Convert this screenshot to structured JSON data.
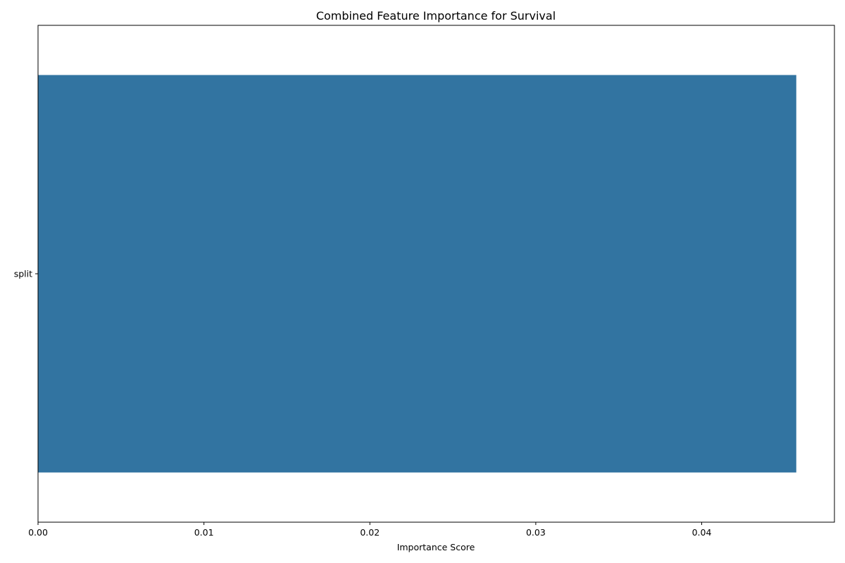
{
  "chart_data": {
    "type": "bar",
    "orientation": "horizontal",
    "title": "Combined Feature Importance for Survival",
    "xlabel": "Importance Score",
    "ylabel": "",
    "categories": [
      "split"
    ],
    "values": [
      0.0457
    ],
    "xlim": [
      0,
      0.048
    ],
    "xticks": [
      0.0,
      0.01,
      0.02,
      0.03,
      0.04
    ],
    "xtick_labels": [
      "0.00",
      "0.01",
      "0.02",
      "0.03",
      "0.04"
    ],
    "grid": false,
    "legend": "none",
    "bar_color": "#3274a1"
  }
}
